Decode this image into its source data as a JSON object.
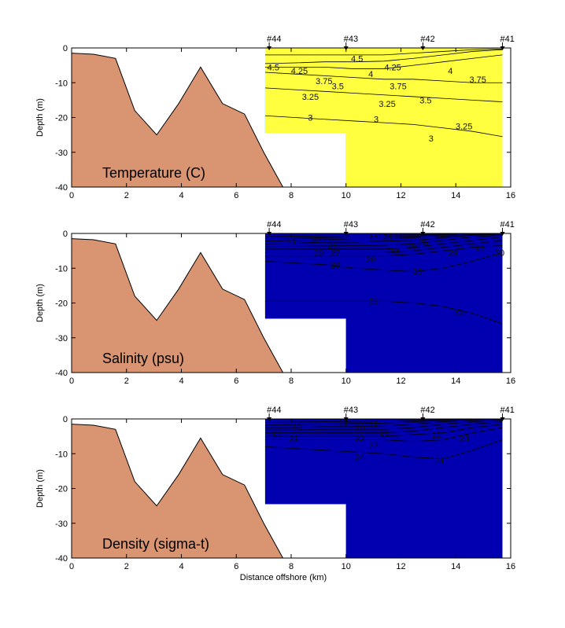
{
  "chart_data": [
    {
      "type": "contour",
      "title": "Temperature (C)",
      "xlabel": "",
      "ylabel": "Depth (m)",
      "xlim": [
        0,
        16
      ],
      "ylim": [
        -40,
        0
      ],
      "xticks": [
        "0",
        "2",
        "4",
        "6",
        "8",
        "10",
        "12",
        "14",
        "16"
      ],
      "yticks": [
        "0",
        "-10",
        "-20",
        "-30",
        "-40"
      ],
      "stations": [
        {
          "name": "#44",
          "x": 7.2
        },
        {
          "name": "#43",
          "x": 10.0
        },
        {
          "name": "#42",
          "x": 12.8
        },
        {
          "name": "#41",
          "x": 15.7
        }
      ],
      "bathymetry": {
        "x": [
          0,
          0.8,
          1.6,
          2.3,
          3.1,
          3.9,
          4.7,
          5.5,
          6.3,
          7.0,
          7.7
        ],
        "depth": [
          -1.5,
          -1.8,
          -3,
          -18,
          -25,
          -16,
          -5.5,
          -16,
          -19,
          -30,
          -40
        ]
      },
      "bands": [
        {
          "color": "#1e90ff",
          "top": [
            -19.5,
            -20,
            -20.5,
            -21,
            -21.5,
            -22,
            -23,
            -24,
            -25.5
          ]
        },
        {
          "color": "#12b4ff",
          "top": [
            -11.5,
            -12,
            -12.5,
            -13,
            -13.5,
            -14,
            -14.5,
            -15,
            -15.5
          ]
        },
        {
          "color": "#00e0ff",
          "top": [
            -7,
            -7.5,
            -8,
            -8.5,
            -9,
            -9,
            -9.5,
            -10,
            -10
          ]
        },
        {
          "color": "#40f0b0",
          "top": [
            -5.5,
            -5.5,
            -5.5,
            -6,
            -6,
            -5,
            -4,
            -3,
            -2
          ]
        },
        {
          "color": "#7ff57a",
          "top": [
            -4.5,
            -4.3,
            -4,
            -4,
            -3.8,
            -3,
            -2,
            -1,
            -0.5
          ]
        },
        {
          "color": "#d8f54a",
          "top": [
            -2,
            -2,
            -2,
            -2,
            -2,
            -1.5,
            -1,
            -0.5,
            -0.3
          ]
        },
        {
          "color": "#ffff40",
          "top": [
            0,
            0,
            0,
            0,
            0,
            0,
            0,
            0,
            0
          ]
        }
      ],
      "contour_labels": [
        {
          "text": "4.5",
          "x": 7.35,
          "y": -5.5
        },
        {
          "text": "4.5",
          "x": 10.4,
          "y": -3
        },
        {
          "text": "4.25",
          "x": 8.3,
          "y": -6.5
        },
        {
          "text": "4.25",
          "x": 11.7,
          "y": -5.5
        },
        {
          "text": "4",
          "x": 10.9,
          "y": -7.5
        },
        {
          "text": "4",
          "x": 13.8,
          "y": -6.5
        },
        {
          "text": "3.75",
          "x": 9.2,
          "y": -9.5
        },
        {
          "text": "3.5",
          "x": 9.7,
          "y": -11
        },
        {
          "text": "3.75",
          "x": 11.9,
          "y": -11
        },
        {
          "text": "3.75",
          "x": 14.8,
          "y": -9
        },
        {
          "text": "3.25",
          "x": 8.7,
          "y": -14
        },
        {
          "text": "3.25",
          "x": 11.5,
          "y": -16
        },
        {
          "text": "3.5",
          "x": 12.9,
          "y": -15
        },
        {
          "text": "3.25",
          "x": 14.3,
          "y": -22.5
        },
        {
          "text": "3",
          "x": 8.7,
          "y": -20
        },
        {
          "text": "3",
          "x": 11.1,
          "y": -20.5
        },
        {
          "text": "3",
          "x": 13.1,
          "y": -26
        }
      ]
    },
    {
      "type": "contour",
      "title": "Salinity (psu)",
      "xlabel": "",
      "ylabel": "Depth (m)",
      "xlim": [
        0,
        16
      ],
      "ylim": [
        -40,
        0
      ],
      "xticks": [
        "0",
        "2",
        "4",
        "6",
        "8",
        "10",
        "12",
        "14",
        "16"
      ],
      "yticks": [
        "0",
        "-10",
        "-20",
        "-30",
        "-40"
      ],
      "stations": [
        {
          "name": "#44",
          "x": 7.2
        },
        {
          "name": "#43",
          "x": 10.0
        },
        {
          "name": "#42",
          "x": 12.8
        },
        {
          "name": "#41",
          "x": 15.7
        }
      ],
      "bathymetry": {
        "x": [
          0,
          0.8,
          1.6,
          2.3,
          3.1,
          3.9,
          4.7,
          5.5,
          6.3,
          7.0,
          7.7
        ],
        "depth": [
          -1.5,
          -1.8,
          -3,
          -18,
          -25,
          -16,
          -5.5,
          -16,
          -19,
          -30,
          -40
        ]
      },
      "bands": [
        {
          "color": "#e00000",
          "top": [
            -19.5,
            -19.5,
            -19.5,
            -19.5,
            -19.5,
            -20,
            -21,
            -23,
            -26
          ]
        },
        {
          "color": "#ff3818",
          "top": [
            -8,
            -8.5,
            -9,
            -10,
            -10.5,
            -11,
            -10,
            -8,
            -5.5
          ]
        },
        {
          "color": "#ff7a00",
          "top": [
            -6.5,
            -6.5,
            -6.5,
            -6.5,
            -6.5,
            -6,
            -5,
            -4,
            -3.5
          ]
        },
        {
          "color": "#ffa000",
          "top": [
            -5.5,
            -5.5,
            -5.5,
            -5.5,
            -5.5,
            -5,
            -4,
            -3,
            -2
          ]
        },
        {
          "color": "#ffcc00",
          "top": [
            -4.5,
            -4.5,
            -4.5,
            -4.5,
            -4.5,
            -4,
            -3,
            -2,
            -1
          ]
        },
        {
          "color": "#f2f230",
          "top": [
            -3.8,
            -3.7,
            -3.6,
            -3.5,
            -3.4,
            -3,
            -2,
            -1,
            -0.5
          ]
        },
        {
          "color": "#aaf04a",
          "top": [
            -3,
            -2.8,
            -2.5,
            -2.5,
            -2.2,
            -2,
            -1.2,
            -0.5,
            -0.2
          ]
        },
        {
          "color": "#30f0b0",
          "top": [
            -2.2,
            -2,
            -1.8,
            -1.5,
            -1.5,
            -1.2,
            -0.8,
            -0.3,
            0
          ]
        },
        {
          "color": "#00d0ff",
          "top": [
            -1.5,
            -1.4,
            -1.2,
            -1,
            -1,
            -0.8,
            -0.4,
            0,
            0
          ]
        },
        {
          "color": "#0060ff",
          "top": [
            -0.9,
            -0.8,
            -0.7,
            -0.6,
            -0.5,
            -0.4,
            -0.2,
            0,
            0
          ]
        },
        {
          "color": "#0000b0",
          "top": [
            0,
            0,
            0,
            0,
            0,
            0,
            0,
            0,
            0
          ]
        }
      ],
      "contour_labels": [
        {
          "text": "23",
          "x": 8.0,
          "y": -2.5
        },
        {
          "text": "24",
          "x": 8.9,
          "y": -2
        },
        {
          "text": "26",
          "x": 9.5,
          "y": -3.5
        },
        {
          "text": "20",
          "x": 9.0,
          "y": -5.5
        },
        {
          "text": "27",
          "x": 9.6,
          "y": -5.5
        },
        {
          "text": "29",
          "x": 10.9,
          "y": -7.5
        },
        {
          "text": "30",
          "x": 9.6,
          "y": -9
        },
        {
          "text": "23",
          "x": 11.0,
          "y": -1.5
        },
        {
          "text": "24",
          "x": 11.5,
          "y": -1
        },
        {
          "text": "25",
          "x": 12.4,
          "y": -3.5
        },
        {
          "text": "26",
          "x": 12.8,
          "y": -2.5
        },
        {
          "text": "28",
          "x": 11.8,
          "y": -5.5
        },
        {
          "text": "29",
          "x": 13.9,
          "y": -5.5
        },
        {
          "text": "28",
          "x": 14.9,
          "y": -4
        },
        {
          "text": "30",
          "x": 15.6,
          "y": -5.5
        },
        {
          "text": "30",
          "x": 12.6,
          "y": -11
        },
        {
          "text": "31",
          "x": 11.0,
          "y": -19.5
        },
        {
          "text": "31",
          "x": 14.1,
          "y": -22.5
        }
      ]
    },
    {
      "type": "contour",
      "title": "Density (sigma-t)",
      "xlabel": "Distance offshore (km)",
      "ylabel": "Depth (m)",
      "xlim": [
        0,
        16
      ],
      "ylim": [
        -40,
        0
      ],
      "xticks": [
        "0",
        "2",
        "4",
        "6",
        "8",
        "10",
        "12",
        "14",
        "16"
      ],
      "yticks": [
        "0",
        "-10",
        "-20",
        "-30",
        "-40"
      ],
      "stations": [
        {
          "name": "#44",
          "x": 7.2
        },
        {
          "name": "#43",
          "x": 10.0
        },
        {
          "name": "#42",
          "x": 12.8
        },
        {
          "name": "#41",
          "x": 15.7
        }
      ],
      "bathymetry": {
        "x": [
          0,
          0.8,
          1.6,
          2.3,
          3.1,
          3.9,
          4.7,
          5.5,
          6.3,
          7.0,
          7.7
        ],
        "depth": [
          -1.5,
          -1.8,
          -3,
          -18,
          -25,
          -16,
          -5.5,
          -16,
          -19,
          -30,
          -40
        ]
      },
      "bands": [
        {
          "color": "#ff5000",
          "top": [
            -8,
            -8.5,
            -9,
            -9.5,
            -10,
            -11,
            -11.5,
            -9,
            -6
          ]
        },
        {
          "color": "#ffa000",
          "top": [
            -6,
            -6,
            -6,
            -6,
            -6,
            -6.5,
            -6,
            -4,
            -2.5
          ]
        },
        {
          "color": "#ffd000",
          "top": [
            -5,
            -5,
            -5,
            -5,
            -5,
            -4.5,
            -4,
            -2.5,
            -1.5
          ]
        },
        {
          "color": "#f0f030",
          "top": [
            -4,
            -4,
            -4,
            -4,
            -4,
            -3.5,
            -2.5,
            -1.5,
            -0.8
          ]
        },
        {
          "color": "#a0f050",
          "top": [
            -3.2,
            -3.2,
            -3,
            -3,
            -3,
            -2.5,
            -1.5,
            -0.8,
            -0.3
          ]
        },
        {
          "color": "#30f0b0",
          "top": [
            -2.5,
            -2.5,
            -2.2,
            -2.2,
            -2,
            -1.5,
            -0.8,
            -0.3,
            0
          ]
        },
        {
          "color": "#00d0ff",
          "top": [
            -1.8,
            -1.6,
            -1.5,
            -1.3,
            -1.2,
            -0.8,
            -0.4,
            0,
            0
          ]
        },
        {
          "color": "#0060ff",
          "top": [
            -1,
            -0.9,
            -0.8,
            -0.7,
            -0.6,
            -0.4,
            -0.2,
            0,
            0
          ]
        },
        {
          "color": "#0000b0",
          "top": [
            0,
            0,
            0,
            0,
            0,
            0,
            0,
            0,
            0
          ]
        }
      ],
      "contour_labels": [
        {
          "text": "20",
          "x": 7.5,
          "y": -4
        },
        {
          "text": "21",
          "x": 8.1,
          "y": -5.5
        },
        {
          "text": "13",
          "x": 8.2,
          "y": -2.5
        },
        {
          "text": "13",
          "x": 9.9,
          "y": -1
        },
        {
          "text": "20",
          "x": 10.5,
          "y": -2.5
        },
        {
          "text": "19",
          "x": 11.0,
          "y": -1.5
        },
        {
          "text": "21",
          "x": 11.4,
          "y": -4
        },
        {
          "text": "22",
          "x": 10.5,
          "y": -5.5
        },
        {
          "text": "23",
          "x": 11.0,
          "y": -7.5
        },
        {
          "text": "22",
          "x": 13.3,
          "y": -4.5
        },
        {
          "text": "23",
          "x": 14.3,
          "y": -5.5
        },
        {
          "text": "24",
          "x": 10.5,
          "y": -11
        },
        {
          "text": "24",
          "x": 13.4,
          "y": -12
        }
      ]
    }
  ]
}
